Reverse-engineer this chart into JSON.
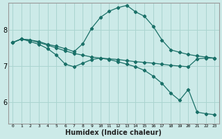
{
  "title": "",
  "xlabel": "Humidex (Indice chaleur)",
  "ylabel": "",
  "bg_color": "#cceae8",
  "line_color": "#1a7068",
  "grid_color": "#aad4d0",
  "xlim": [
    -0.5,
    23.5
  ],
  "ylim": [
    5.4,
    8.75
  ],
  "yticks": [
    6,
    7,
    8
  ],
  "xticks": [
    0,
    1,
    2,
    3,
    4,
    5,
    6,
    7,
    8,
    9,
    10,
    11,
    12,
    13,
    14,
    15,
    16,
    17,
    18,
    19,
    20,
    21,
    22,
    23
  ],
  "lines": [
    {
      "x": [
        0,
        1,
        2,
        3,
        4,
        5,
        6,
        7,
        8,
        9,
        10,
        11,
        12,
        13,
        14,
        15,
        16,
        17,
        18,
        19,
        20,
        21,
        22,
        23
      ],
      "y": [
        7.65,
        7.75,
        7.72,
        7.68,
        7.6,
        7.55,
        7.48,
        7.4,
        7.62,
        8.05,
        8.35,
        8.52,
        8.62,
        8.68,
        8.5,
        8.38,
        8.1,
        7.72,
        7.45,
        7.38,
        7.32,
        7.28,
        7.25,
        7.22
      ]
    },
    {
      "x": [
        0,
        1,
        2,
        3,
        4,
        5,
        6,
        7,
        8,
        9,
        10,
        11,
        12,
        13,
        14,
        15,
        16,
        17,
        18,
        19,
        20,
        21,
        22,
        23
      ],
      "y": [
        7.65,
        7.75,
        7.72,
        7.65,
        7.58,
        7.5,
        7.42,
        7.35,
        7.3,
        7.25,
        7.22,
        7.2,
        7.18,
        7.15,
        7.12,
        7.1,
        7.08,
        7.05,
        7.02,
        7.0,
        6.98,
        7.2,
        7.22,
        7.22
      ]
    },
    {
      "x": [
        0,
        1,
        2,
        3,
        4,
        5,
        6,
        7,
        8,
        9,
        10,
        11,
        12,
        13,
        14,
        15,
        16,
        17,
        18,
        19,
        20,
        21,
        22,
        23
      ],
      "y": [
        7.65,
        7.75,
        7.68,
        7.6,
        7.48,
        7.3,
        7.05,
        6.98,
        7.08,
        7.18,
        7.22,
        7.18,
        7.12,
        7.05,
        6.98,
        6.88,
        6.72,
        6.52,
        6.25,
        6.05,
        6.35,
        5.72,
        5.68,
        5.65
      ]
    }
  ],
  "marker": "D",
  "markersize": 2.2,
  "linewidth": 0.9
}
